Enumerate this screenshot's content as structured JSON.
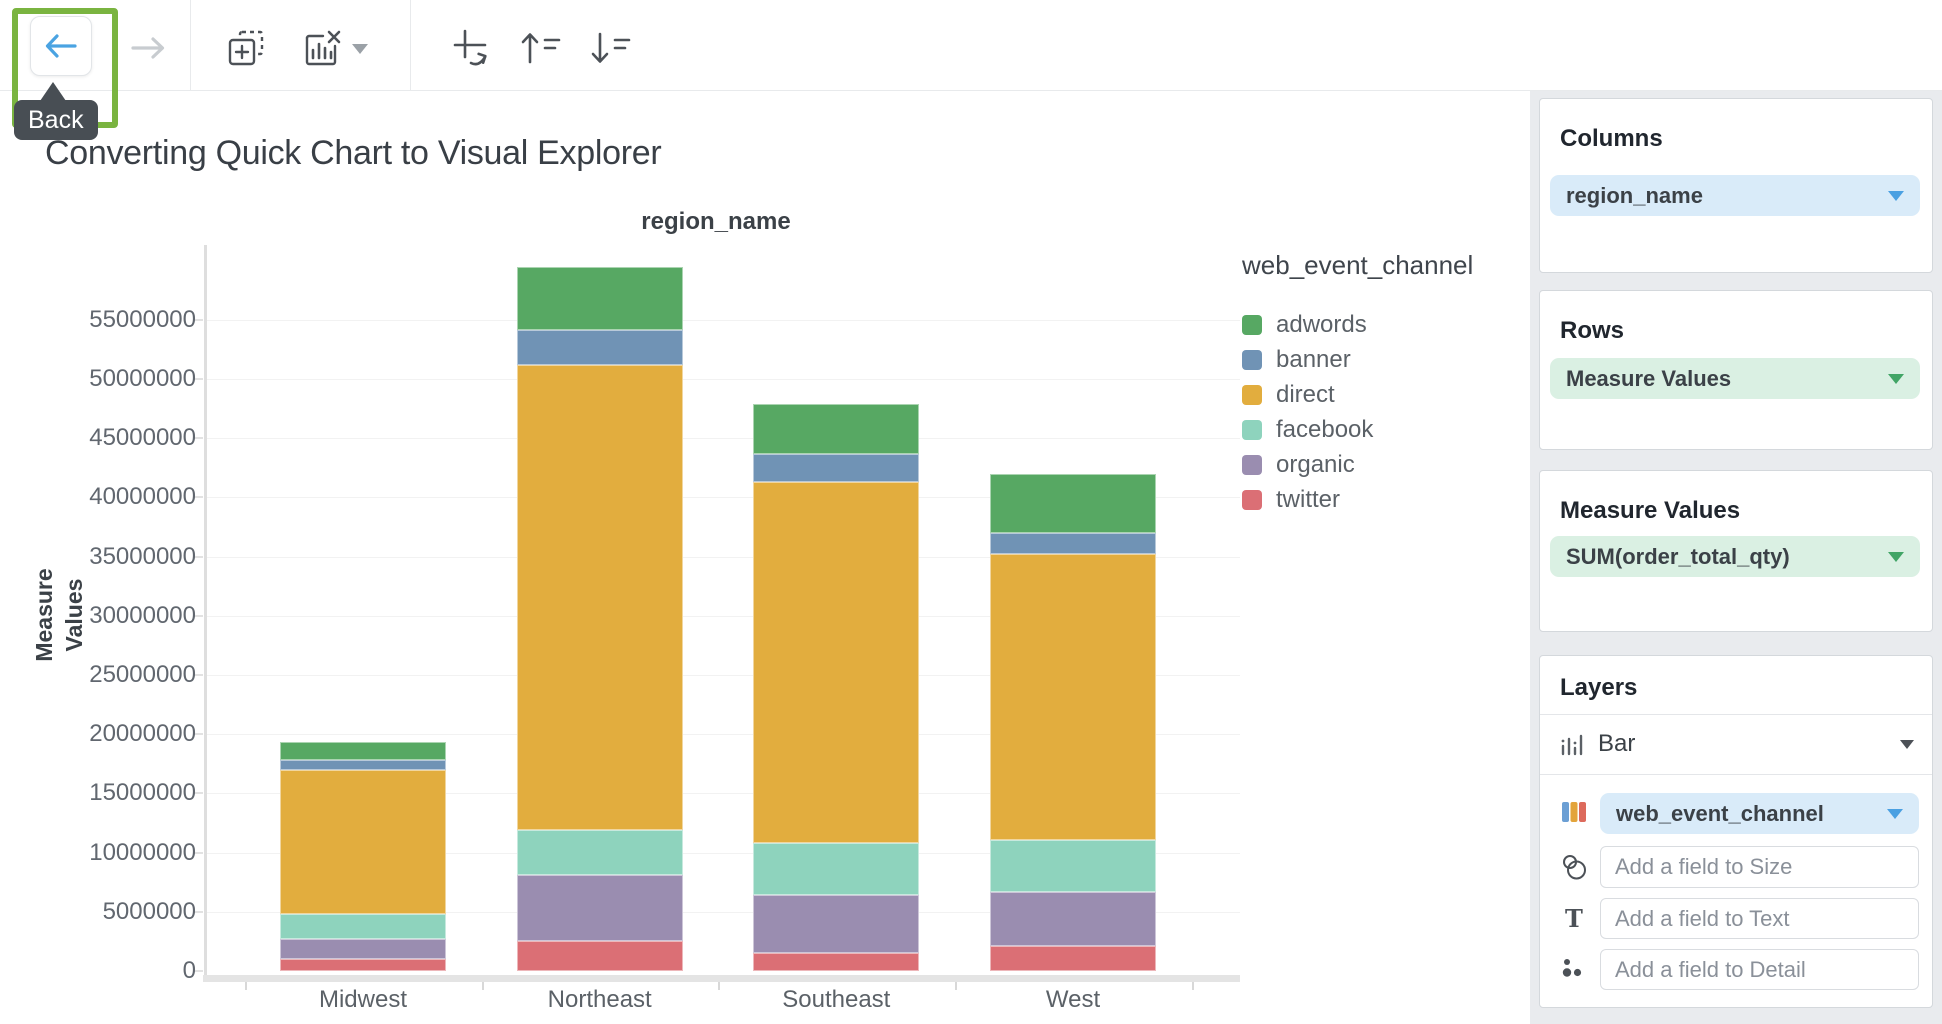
{
  "toolbar": {
    "back_tooltip": "Back"
  },
  "page_title": "Converting Quick Chart to Visual Explorer",
  "chart_data": {
    "type": "bar",
    "stacked": true,
    "title": "region_name",
    "xlabel": "",
    "ylabel": "Measure Values",
    "legend_title": "web_event_channel",
    "legend_position": "right",
    "grid": true,
    "categories": [
      "Midwest",
      "Northeast",
      "Southeast",
      "West"
    ],
    "series": [
      {
        "name": "adwords",
        "color": "#57a863",
        "values": [
          1500000,
          5400000,
          4200000,
          5000000
        ]
      },
      {
        "name": "banner",
        "color": "#7093b5",
        "values": [
          800000,
          2900000,
          2400000,
          1800000
        ]
      },
      {
        "name": "direct",
        "color": "#e2ad3e",
        "values": [
          12200000,
          39300000,
          30500000,
          24100000
        ]
      },
      {
        "name": "facebook",
        "color": "#8ed3bd",
        "values": [
          2100000,
          3800000,
          4400000,
          4400000
        ]
      },
      {
        "name": "organic",
        "color": "#9a8db0",
        "values": [
          1700000,
          5600000,
          4900000,
          4600000
        ]
      },
      {
        "name": "twitter",
        "color": "#db6f75",
        "values": [
          1000000,
          2500000,
          1500000,
          2100000
        ]
      }
    ],
    "stack_order_bottom_to_top": [
      "twitter",
      "organic",
      "facebook",
      "direct",
      "banner",
      "adwords"
    ],
    "y_axis": {
      "min": 0,
      "max": 55000000,
      "step": 5000000
    }
  },
  "panel": {
    "columns": {
      "title": "Columns",
      "field": "region_name"
    },
    "rows": {
      "title": "Rows",
      "field": "Measure Values"
    },
    "measure_values": {
      "title": "Measure Values",
      "field": "SUM(order_total_qty)"
    },
    "layers": {
      "title": "Layers",
      "mark_type": "Bar",
      "color_field": "web_event_channel",
      "size_placeholder": "Add a field to Size",
      "text_placeholder": "Add a field to Text",
      "detail_placeholder": "Add a field to Detail"
    }
  }
}
